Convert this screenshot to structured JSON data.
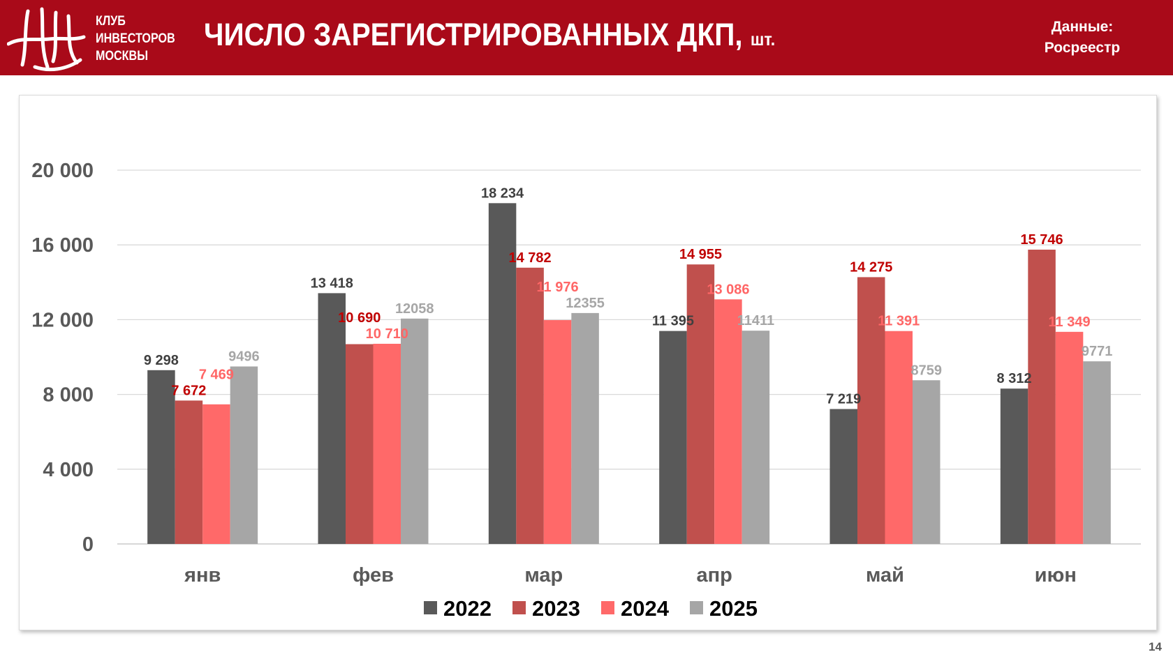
{
  "header": {
    "logo_text": "КИМ",
    "club_lines": [
      "КЛУБ",
      "ИНВЕСТОРОВ",
      "МОСКВЫ"
    ],
    "title": "ЧИСЛО ЗАРЕГИСТРИРОВАННЫХ ДКП,",
    "title_unit": "шт.",
    "source_label": "Данные:",
    "source_value": "Росреестр"
  },
  "page_number": "14",
  "chart_data": {
    "type": "bar",
    "title": "ЧИСЛО ЗАРЕГИСТРИРОВАННЫХ ДКП, шт.",
    "xlabel": "",
    "ylabel": "",
    "ylim": [
      0,
      20000
    ],
    "yticks": [
      0,
      4000,
      8000,
      12000,
      16000,
      20000
    ],
    "ytick_labels": [
      "0",
      "4 000",
      "8 000",
      "12 000",
      "16 000",
      "20 000"
    ],
    "grid": true,
    "legend_position": "bottom",
    "categories": [
      "янв",
      "фев",
      "мар",
      "апр",
      "май",
      "июн"
    ],
    "series": [
      {
        "name": "2022",
        "color": "#595959",
        "label_color": "#404040",
        "values": [
          9298,
          13418,
          18234,
          11395,
          7219,
          8312
        ],
        "labels": [
          "9 298",
          "13 418",
          "18 234",
          "11 395",
          "7 219",
          "8 312"
        ]
      },
      {
        "name": "2023",
        "color": "#c0504d",
        "label_color": "#c00000",
        "values": [
          7672,
          10690,
          14782,
          14955,
          14275,
          15746
        ],
        "labels": [
          "7 672",
          "10 690",
          "14 782",
          "14 955",
          "14 275",
          "15 746"
        ]
      },
      {
        "name": "2024",
        "color": "#ff6969",
        "label_color": "#ff6666",
        "values": [
          7469,
          10710,
          11976,
          13086,
          11391,
          11349
        ],
        "labels": [
          "7 469",
          "10 710",
          "11 976",
          "13 086",
          "11 391",
          "11 349"
        ]
      },
      {
        "name": "2025",
        "color": "#a6a6a6",
        "label_color": "#a6a6a6",
        "values": [
          9496,
          12058,
          12355,
          11411,
          8759,
          9771
        ],
        "labels": [
          "9496",
          "12058",
          "12355",
          "11411",
          "8759",
          "9771"
        ]
      }
    ]
  }
}
